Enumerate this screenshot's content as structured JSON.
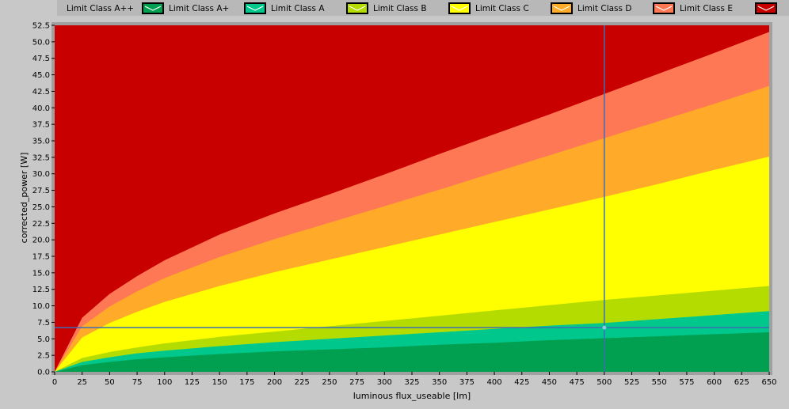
{
  "chart_data": {
    "type": "area",
    "title": "",
    "xlabel": "luminous flux_useable [lm]",
    "ylabel": "corrected_power [W]",
    "xlim": [
      0,
      650
    ],
    "ylim": [
      0,
      52.5
    ],
    "x_ticks": [
      "0",
      "25",
      "50",
      "75",
      "100",
      "125",
      "150",
      "175",
      "200",
      "225",
      "250",
      "275",
      "300",
      "325",
      "350",
      "375",
      "400",
      "425",
      "450",
      "475",
      "500",
      "525",
      "550",
      "575",
      "600",
      "625",
      "650"
    ],
    "y_ticks": [
      "0.0",
      "2.5",
      "5.0",
      "7.5",
      "10.0",
      "12.5",
      "15.0",
      "17.5",
      "20.0",
      "22.5",
      "25.0",
      "27.5",
      "30.0",
      "32.5",
      "35.0",
      "37.5",
      "40.0",
      "42.5",
      "45.0",
      "47.5",
      "50.0",
      "52.5"
    ],
    "x": [
      0,
      25,
      50,
      75,
      100,
      150,
      200,
      250,
      300,
      350,
      400,
      450,
      500,
      550,
      600,
      650
    ],
    "series": [
      {
        "name": "Limit Class A++",
        "color": "#00a050",
        "values": [
          0,
          1.0,
          1.5,
          1.9,
          2.2,
          2.7,
          3.1,
          3.4,
          3.7,
          4.1,
          4.4,
          4.8,
          5.1,
          5.4,
          5.7,
          6.0
        ]
      },
      {
        "name": "Limit Class A+",
        "color": "#00c88c",
        "values": [
          0,
          1.5,
          2.2,
          2.8,
          3.2,
          3.9,
          4.5,
          5.0,
          5.5,
          6.0,
          6.5,
          7.0,
          7.4,
          8.0,
          8.6,
          9.2
        ]
      },
      {
        "name": "Limit Class A",
        "color": "#b4dc00",
        "values": [
          0,
          2.1,
          3.0,
          3.7,
          4.3,
          5.3,
          6.1,
          6.9,
          7.7,
          8.5,
          9.3,
          10.1,
          10.9,
          11.6,
          12.3,
          13.0
        ]
      },
      {
        "name": "Limit Class B",
        "color": "#ffff00",
        "values": [
          0,
          5.2,
          7.4,
          9.1,
          10.6,
          13.0,
          15.1,
          17.0,
          18.9,
          20.8,
          22.7,
          24.6,
          26.5,
          28.5,
          30.6,
          32.6
        ]
      },
      {
        "name": "Limit Class C",
        "color": "#ffaa28",
        "values": [
          0,
          6.9,
          9.9,
          12.2,
          14.2,
          17.4,
          20.1,
          22.6,
          25.1,
          27.6,
          30.2,
          32.8,
          35.4,
          38.0,
          40.6,
          43.3
        ]
      },
      {
        "name": "Limit Class D",
        "color": "#ff7855",
        "values": [
          0,
          8.2,
          11.8,
          14.5,
          16.9,
          20.8,
          24.0,
          26.9,
          29.9,
          33.0,
          36.0,
          39.0,
          42.1,
          45.2,
          48.3,
          51.5
        ]
      },
      {
        "name": "Limit Class E",
        "color": "#c80000",
        "values": [
          52.5,
          52.5,
          52.5,
          52.5,
          52.5,
          52.5,
          52.5,
          52.5,
          52.5,
          52.5,
          52.5,
          52.5,
          52.5,
          52.5,
          52.5,
          52.5
        ]
      }
    ],
    "cursor": {
      "x": 500,
      "y": 6.7
    },
    "grid": false,
    "legend": "top"
  },
  "colors": {
    "background": "#c8c8c8",
    "plot_frame": "#000000",
    "cursor": "#3c6eb4"
  }
}
